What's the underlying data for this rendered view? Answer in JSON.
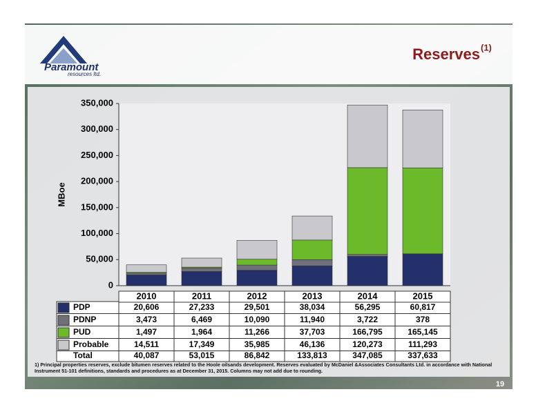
{
  "header": {
    "logo": "Paramount",
    "logo_sub": "resources ltd.",
    "title": "Reserves",
    "title_note": "(1)"
  },
  "chart_data": {
    "type": "stacked_bar",
    "ylabel": "MBoe",
    "categories": [
      "2010",
      "2011",
      "2012",
      "2013",
      "2014",
      "2015"
    ],
    "series": [
      {
        "name": "PDP",
        "color": "#23306b",
        "values": [
          20606,
          27233,
          29501,
          38034,
          56295,
          60817
        ],
        "value_labels": [
          "20,606",
          "27,233",
          "29,501",
          "38,034",
          "56,295",
          "60,817"
        ]
      },
      {
        "name": "PDNP",
        "color": "#6f7079",
        "values": [
          3473,
          6469,
          10090,
          11940,
          3722,
          378
        ],
        "value_labels": [
          "3,473",
          "6,469",
          "10,090",
          "11,940",
          "3,722",
          "378"
        ]
      },
      {
        "name": "PUD",
        "color": "#6cb92c",
        "values": [
          1497,
          1964,
          11266,
          37703,
          166795,
          165145
        ],
        "value_labels": [
          "1,497",
          "1,964",
          "11,266",
          "37,703",
          "166,795",
          "165,145"
        ]
      },
      {
        "name": "Probable",
        "color": "#c9c9cd",
        "values": [
          14511,
          17349,
          35985,
          46136,
          120273,
          111293
        ],
        "value_labels": [
          "14,511",
          "17,349",
          "35,985",
          "46,136",
          "120,273",
          "111,293"
        ]
      }
    ],
    "total_name": "Total",
    "totals": [
      40087,
      53015,
      86842,
      133813,
      347085,
      337633
    ],
    "total_labels": [
      "40,087",
      "53,015",
      "86,842",
      "133,813",
      "347,085",
      "337,633"
    ],
    "ylim": [
      0,
      350000
    ],
    "yticks": [
      0,
      {
        "value": 50000,
        "label": "50,000"
      },
      {
        "value": 100000,
        "label": "100,000"
      },
      {
        "value": 150000,
        "label": "150,000"
      },
      {
        "value": 200000,
        "label": "200,000"
      },
      {
        "value": 250000,
        "label": "250,000"
      },
      {
        "value": 300000,
        "label": "300,000"
      },
      {
        "value": 350000,
        "label": "350,000"
      }
    ],
    "grid": false
  },
  "footnote": "1) Principal properties reserves, exclude bitumen reserves related to the Hoole oilsands development. Reserves evaluated by McDaniel &Associates Consultants Ltd. in accordance with National Instrument 51-101 definitions, standards and procedures as at December 31, 2015.  Columns may not add due to rounding.",
  "page_number": "19"
}
